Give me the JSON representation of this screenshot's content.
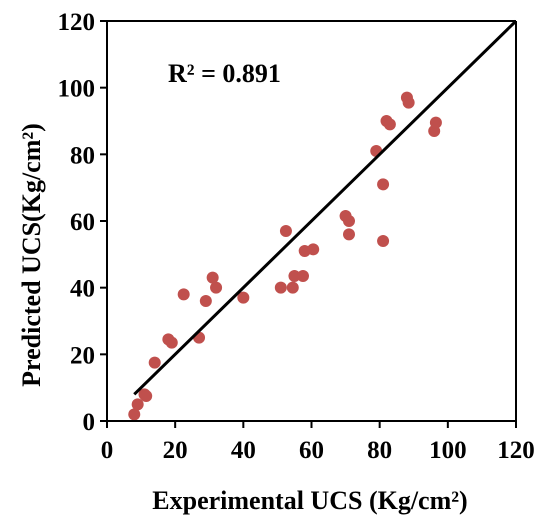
{
  "chart_data": {
    "type": "scatter",
    "title": "",
    "xlabel": "Experimental UCS (Kg/cm²)",
    "ylabel": "Predicted UCS(Kg/cm²)",
    "xlim": [
      0,
      120
    ],
    "ylim": [
      0,
      120
    ],
    "xticks": [
      "0",
      "20",
      "40",
      "60",
      "80",
      "100",
      "120"
    ],
    "yticks": [
      "0",
      "20",
      "40",
      "60",
      "80",
      "100",
      "120"
    ],
    "grid": false,
    "legend": "none",
    "annotation": "R² = 0.891",
    "colors": {
      "points": "#c0504d",
      "trendline": "#000000",
      "axes": "#000000"
    },
    "trendline": {
      "x": [
        8,
        120
      ],
      "y": [
        8,
        120
      ]
    },
    "points": [
      {
        "x": 8,
        "y": 2
      },
      {
        "x": 9,
        "y": 5
      },
      {
        "x": 11,
        "y": 8
      },
      {
        "x": 11.5,
        "y": 7.5
      },
      {
        "x": 14,
        "y": 17.5
      },
      {
        "x": 18,
        "y": 24.5
      },
      {
        "x": 19,
        "y": 23.5
      },
      {
        "x": 22.5,
        "y": 38
      },
      {
        "x": 27,
        "y": 25
      },
      {
        "x": 29,
        "y": 36
      },
      {
        "x": 31,
        "y": 43
      },
      {
        "x": 32,
        "y": 40
      },
      {
        "x": 40,
        "y": 37
      },
      {
        "x": 51,
        "y": 40
      },
      {
        "x": 52.5,
        "y": 57
      },
      {
        "x": 54.5,
        "y": 40
      },
      {
        "x": 55,
        "y": 43.5
      },
      {
        "x": 57.5,
        "y": 43.5
      },
      {
        "x": 58,
        "y": 51
      },
      {
        "x": 60.5,
        "y": 51.5
      },
      {
        "x": 70,
        "y": 61.5
      },
      {
        "x": 71,
        "y": 60
      },
      {
        "x": 71,
        "y": 56
      },
      {
        "x": 79,
        "y": 81
      },
      {
        "x": 81,
        "y": 71
      },
      {
        "x": 81,
        "y": 54
      },
      {
        "x": 82,
        "y": 90
      },
      {
        "x": 83,
        "y": 89
      },
      {
        "x": 88,
        "y": 97
      },
      {
        "x": 88.5,
        "y": 95.5
      },
      {
        "x": 96,
        "y": 87
      },
      {
        "x": 96.5,
        "y": 89.5
      }
    ]
  }
}
